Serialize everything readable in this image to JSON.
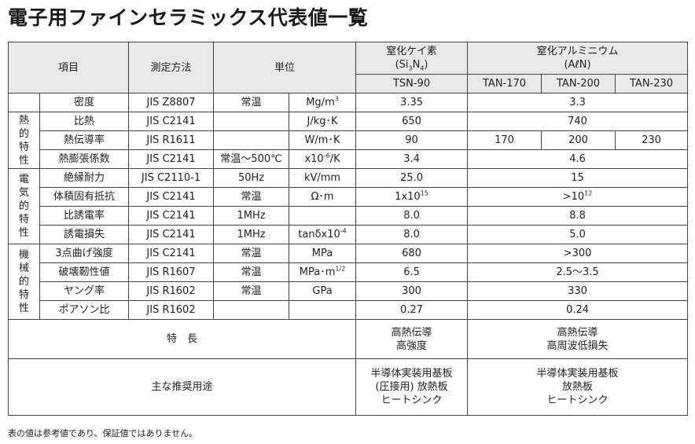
{
  "title": "電子用ファインセラミックス代表値一覧",
  "header": {
    "item": "項目",
    "method": "測定方法",
    "unit": "単位",
    "sin_name": "窒化ケイ素",
    "sin_formula_prefix": "(Si",
    "sin_formula_sub3": "3",
    "sin_formula_mid": "N",
    "sin_formula_sub4": "4",
    "sin_formula_suffix": ")",
    "aln_name": "窒化アルミニウム",
    "aln_formula": "(AℓN)",
    "grades": [
      "TSN-90",
      "TAN-170",
      "TAN-200",
      "TAN-230"
    ]
  },
  "categories": {
    "thermal": "熱的特性",
    "electrical": "電気的特性",
    "mechanical": "機械的特性"
  },
  "rows": {
    "density": {
      "item": "密度",
      "method": "JIS Z8807",
      "cond": "常温",
      "unit_base": "Mg/m",
      "unit_sup": "3",
      "tsn": "3.35",
      "aln": "3.3"
    },
    "specific_heat": {
      "item": "比熱",
      "method": "JIS C2141",
      "cond": "",
      "unit": "J/kg･K",
      "tsn": "650",
      "aln": "740"
    },
    "conductivity": {
      "item": "熱伝導率",
      "method": "JIS R1611",
      "cond": "",
      "unit": "W/m･K",
      "tsn": "90",
      "tan170": "170",
      "tan200": "200",
      "tan230": "230"
    },
    "expansion": {
      "item": "熱膨張係数",
      "method": "JIS C2141",
      "cond": "常温～500℃",
      "unit_base": "x10",
      "unit_sup": "-6",
      "unit_suffix": "/K",
      "tsn": "3.4",
      "aln": "4.6"
    },
    "dielectric_strength": {
      "item": "絶縁耐力",
      "method": "JIS C2110-1",
      "cond": "50Hz",
      "unit": "kV/mm",
      "tsn": "25.0",
      "aln": "15"
    },
    "resistivity": {
      "item": "体積固有抵抗",
      "method": "JIS C2141",
      "cond": "常温",
      "unit": "Ω･m",
      "tsn_base": "1x10",
      "tsn_sup": "15",
      "aln_base": ">10",
      "aln_sup": "12"
    },
    "permittivity": {
      "item": "比誘電率",
      "method": "JIS C2141",
      "cond": "1MHz",
      "unit": "",
      "tsn": "8.0",
      "aln": "8.8"
    },
    "loss": {
      "item": "誘電損失",
      "method": "JIS C2141",
      "cond": "1MHz",
      "unit_base": "tanδx10",
      "unit_sup": "-4",
      "tsn": "8.0",
      "aln": "5.0"
    },
    "bending": {
      "item": "3点曲げ強度",
      "method": "JIS C2141",
      "cond": "常温",
      "unit": "MPa",
      "tsn": "680",
      "aln": ">300"
    },
    "toughness": {
      "item": "破壊靭性値",
      "method": "JIS R1607",
      "cond": "常温",
      "unit_base": "MPa･m",
      "unit_sup": "1/2",
      "tsn": "6.5",
      "aln": "2.5～3.5"
    },
    "young": {
      "item": "ヤング率",
      "method": "JIS R1602",
      "cond": "常温",
      "unit": "GPa",
      "tsn": "300",
      "aln": "330"
    },
    "poisson": {
      "item": "ポアソン比",
      "method": "JIS R1602",
      "cond": "",
      "unit": "",
      "tsn": "0.27",
      "aln": "0.24"
    }
  },
  "features": {
    "label": "特　長",
    "tsn": [
      "高熱伝導",
      "高強度"
    ],
    "aln": [
      "高熱伝導",
      "高周波低損失"
    ]
  },
  "applications": {
    "label": "主な推奨用途",
    "tsn": [
      "半導体実装用基板",
      "(圧接用) 放熱板",
      "ヒートシンク"
    ],
    "aln": [
      "半導体実装用基板",
      "放熱板",
      "ヒートシンク"
    ]
  },
  "footnote": "表の値は参考値であり、保証値ではありません。"
}
